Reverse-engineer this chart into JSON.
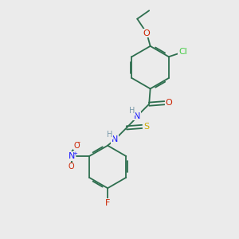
{
  "bg_color": "#ebebeb",
  "bond_color": "#2d6e4e",
  "atom_colors": {
    "H": "#7a9aaa",
    "N": "#1a1aff",
    "O": "#cc2200",
    "S": "#ccaa00",
    "Cl": "#44cc44",
    "F": "#cc2200",
    "NO2_N": "#1a1aff",
    "NO2_O": "#cc2200"
  },
  "figsize": [
    3.0,
    3.0
  ],
  "dpi": 100,
  "lw": 1.3,
  "fs": 8.0,
  "fs_small": 7.0
}
